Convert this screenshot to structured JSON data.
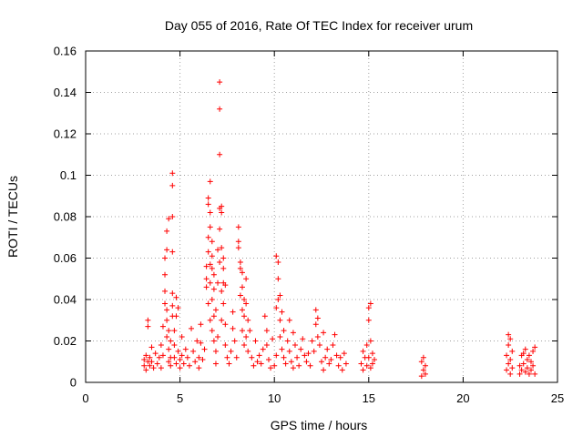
{
  "chart_data": {
    "type": "scatter",
    "title": "Day 055 of 2016, Rate Of TEC Index for receiver urum",
    "xlabel": "GPS time / hours",
    "ylabel": "ROTI / TECUs",
    "xlim": [
      0,
      25
    ],
    "ylim": [
      0,
      0.16
    ],
    "xticks": [
      "0",
      "5",
      "10",
      "15",
      "20",
      "25"
    ],
    "yticks": [
      "0",
      "0.02",
      "0.04",
      "0.06",
      "0.08",
      "0.1",
      "0.12",
      "0.14",
      "0.16"
    ],
    "grid": true,
    "marker": "+",
    "series": [
      {
        "color": "#ff0000",
        "points": [
          [
            3.1,
            0.008
          ],
          [
            3.1,
            0.011
          ],
          [
            3.2,
            0.006
          ],
          [
            3.2,
            0.013
          ],
          [
            3.3,
            0.01
          ],
          [
            3.3,
            0.03
          ],
          [
            3.3,
            0.027
          ],
          [
            3.4,
            0.012
          ],
          [
            3.4,
            0.008
          ],
          [
            3.5,
            0.017
          ],
          [
            3.5,
            0.01
          ],
          [
            3.6,
            0.007
          ],
          [
            3.7,
            0.014
          ],
          [
            3.8,
            0.009
          ],
          [
            3.9,
            0.012
          ],
          [
            4.0,
            0.018
          ],
          [
            4.0,
            0.007
          ],
          [
            4.1,
            0.013
          ],
          [
            4.1,
            0.027
          ],
          [
            4.2,
            0.06
          ],
          [
            4.2,
            0.052
          ],
          [
            4.2,
            0.044
          ],
          [
            4.2,
            0.038
          ],
          [
            4.3,
            0.064
          ],
          [
            4.3,
            0.073
          ],
          [
            4.3,
            0.035
          ],
          [
            4.3,
            0.03
          ],
          [
            4.3,
            0.022
          ],
          [
            4.4,
            0.079
          ],
          [
            4.4,
            0.025
          ],
          [
            4.4,
            0.016
          ],
          [
            4.4,
            0.01
          ],
          [
            4.5,
            0.012
          ],
          [
            4.5,
            0.008
          ],
          [
            4.5,
            0.02
          ],
          [
            4.6,
            0.101
          ],
          [
            4.6,
            0.095
          ],
          [
            4.6,
            0.08
          ],
          [
            4.6,
            0.063
          ],
          [
            4.6,
            0.043
          ],
          [
            4.6,
            0.037
          ],
          [
            4.6,
            0.032
          ],
          [
            4.7,
            0.025
          ],
          [
            4.7,
            0.018
          ],
          [
            4.7,
            0.012
          ],
          [
            4.8,
            0.009
          ],
          [
            4.8,
            0.032
          ],
          [
            4.8,
            0.041
          ],
          [
            4.9,
            0.036
          ],
          [
            4.9,
            0.015
          ],
          [
            5.0,
            0.011
          ],
          [
            5.0,
            0.007
          ],
          [
            5.1,
            0.022
          ],
          [
            5.1,
            0.013
          ],
          [
            5.2,
            0.009
          ],
          [
            5.3,
            0.016
          ],
          [
            5.4,
            0.012
          ],
          [
            5.5,
            0.008
          ],
          [
            5.6,
            0.026
          ],
          [
            5.7,
            0.015
          ],
          [
            5.8,
            0.01
          ],
          [
            5.9,
            0.02
          ],
          [
            6.0,
            0.012
          ],
          [
            6.0,
            0.007
          ],
          [
            6.1,
            0.019
          ],
          [
            6.1,
            0.028
          ],
          [
            6.2,
            0.011
          ],
          [
            6.3,
            0.016
          ],
          [
            6.4,
            0.05
          ],
          [
            6.4,
            0.046
          ],
          [
            6.4,
            0.056
          ],
          [
            6.5,
            0.089
          ],
          [
            6.5,
            0.086
          ],
          [
            6.5,
            0.07
          ],
          [
            6.5,
            0.063
          ],
          [
            6.5,
            0.038
          ],
          [
            6.6,
            0.097
          ],
          [
            6.6,
            0.082
          ],
          [
            6.6,
            0.075
          ],
          [
            6.6,
            0.057
          ],
          [
            6.6,
            0.048
          ],
          [
            6.6,
            0.03
          ],
          [
            6.7,
            0.068
          ],
          [
            6.7,
            0.061
          ],
          [
            6.7,
            0.055
          ],
          [
            6.7,
            0.04
          ],
          [
            6.7,
            0.025
          ],
          [
            6.8,
            0.052
          ],
          [
            6.8,
            0.045
          ],
          [
            6.8,
            0.032
          ],
          [
            6.8,
            0.02
          ],
          [
            6.9,
            0.035
          ],
          [
            6.9,
            0.015
          ],
          [
            6.9,
            0.009
          ],
          [
            7.0,
            0.064
          ],
          [
            7.0,
            0.048
          ],
          [
            7.0,
            0.022
          ],
          [
            7.1,
            0.145
          ],
          [
            7.1,
            0.132
          ],
          [
            7.1,
            0.11
          ],
          [
            7.1,
            0.084
          ],
          [
            7.1,
            0.074
          ],
          [
            7.1,
            0.058
          ],
          [
            7.2,
            0.085
          ],
          [
            7.2,
            0.082
          ],
          [
            7.2,
            0.065
          ],
          [
            7.2,
            0.044
          ],
          [
            7.2,
            0.03
          ],
          [
            7.3,
            0.06
          ],
          [
            7.3,
            0.055
          ],
          [
            7.3,
            0.048
          ],
          [
            7.3,
            0.038
          ],
          [
            7.4,
            0.047
          ],
          [
            7.4,
            0.028
          ],
          [
            7.4,
            0.018
          ],
          [
            7.5,
            0.012
          ],
          [
            7.6,
            0.009
          ],
          [
            7.7,
            0.015
          ],
          [
            7.8,
            0.034
          ],
          [
            7.8,
            0.026
          ],
          [
            7.9,
            0.02
          ],
          [
            8.0,
            0.012
          ],
          [
            8.1,
            0.075
          ],
          [
            8.1,
            0.068
          ],
          [
            8.1,
            0.065
          ],
          [
            8.2,
            0.058
          ],
          [
            8.2,
            0.055
          ],
          [
            8.2,
            0.042
          ],
          [
            8.3,
            0.053
          ],
          [
            8.3,
            0.046
          ],
          [
            8.3,
            0.035
          ],
          [
            8.3,
            0.025
          ],
          [
            8.4,
            0.04
          ],
          [
            8.4,
            0.032
          ],
          [
            8.4,
            0.018
          ],
          [
            8.5,
            0.05
          ],
          [
            8.5,
            0.038
          ],
          [
            8.5,
            0.022
          ],
          [
            8.6,
            0.03
          ],
          [
            8.6,
            0.015
          ],
          [
            8.7,
            0.025
          ],
          [
            8.8,
            0.012
          ],
          [
            8.9,
            0.008
          ],
          [
            9.0,
            0.02
          ],
          [
            9.1,
            0.01
          ],
          [
            9.2,
            0.013
          ],
          [
            9.3,
            0.009
          ],
          [
            9.4,
            0.016
          ],
          [
            9.5,
            0.032
          ],
          [
            9.6,
            0.025
          ],
          [
            9.6,
            0.018
          ],
          [
            9.7,
            0.011
          ],
          [
            9.8,
            0.007
          ],
          [
            9.9,
            0.021
          ],
          [
            10.0,
            0.008
          ],
          [
            10.1,
            0.013
          ],
          [
            10.1,
            0.036
          ],
          [
            10.1,
            0.061
          ],
          [
            10.2,
            0.058
          ],
          [
            10.2,
            0.05
          ],
          [
            10.2,
            0.04
          ],
          [
            10.3,
            0.042
          ],
          [
            10.3,
            0.03
          ],
          [
            10.3,
            0.022
          ],
          [
            10.4,
            0.034
          ],
          [
            10.4,
            0.016
          ],
          [
            10.5,
            0.025
          ],
          [
            10.5,
            0.012
          ],
          [
            10.6,
            0.009
          ],
          [
            10.7,
            0.02
          ],
          [
            10.8,
            0.03
          ],
          [
            10.8,
            0.015
          ],
          [
            10.9,
            0.01
          ],
          [
            11.0,
            0.024
          ],
          [
            11.0,
            0.007
          ],
          [
            11.1,
            0.018
          ],
          [
            11.2,
            0.012
          ],
          [
            11.3,
            0.008
          ],
          [
            11.4,
            0.016
          ],
          [
            11.5,
            0.021
          ],
          [
            11.6,
            0.013
          ],
          [
            11.7,
            0.01
          ],
          [
            11.8,
            0.014
          ],
          [
            11.9,
            0.008
          ],
          [
            12.0,
            0.02
          ],
          [
            12.1,
            0.015
          ],
          [
            12.2,
            0.035
          ],
          [
            12.2,
            0.028
          ],
          [
            12.3,
            0.031
          ],
          [
            12.3,
            0.022
          ],
          [
            12.4,
            0.018
          ],
          [
            12.5,
            0.01
          ],
          [
            12.6,
            0.024
          ],
          [
            12.6,
            0.006
          ],
          [
            12.7,
            0.012
          ],
          [
            12.8,
            0.016
          ],
          [
            12.9,
            0.009
          ],
          [
            13.0,
            0.011
          ],
          [
            13.1,
            0.018
          ],
          [
            13.2,
            0.023
          ],
          [
            13.3,
            0.013
          ],
          [
            13.4,
            0.008
          ],
          [
            13.5,
            0.012
          ],
          [
            13.6,
            0.006
          ],
          [
            13.7,
            0.014
          ],
          [
            13.8,
            0.009
          ],
          [
            14.6,
            0.009
          ],
          [
            14.7,
            0.015
          ],
          [
            14.7,
            0.006
          ],
          [
            14.8,
            0.012
          ],
          [
            14.9,
            0.018
          ],
          [
            14.9,
            0.008
          ],
          [
            15.0,
            0.03
          ],
          [
            15.0,
            0.036
          ],
          [
            15.0,
            0.012
          ],
          [
            15.1,
            0.038
          ],
          [
            15.1,
            0.02
          ],
          [
            15.1,
            0.007
          ],
          [
            15.2,
            0.014
          ],
          [
            15.2,
            0.009
          ],
          [
            15.3,
            0.011
          ],
          [
            17.8,
            0.01
          ],
          [
            17.8,
            0.003
          ],
          [
            17.9,
            0.012
          ],
          [
            17.9,
            0.006
          ],
          [
            18.0,
            0.008
          ],
          [
            18.0,
            0.004
          ],
          [
            22.3,
            0.013
          ],
          [
            22.3,
            0.006
          ],
          [
            22.4,
            0.023
          ],
          [
            22.4,
            0.018
          ],
          [
            22.4,
            0.009
          ],
          [
            22.5,
            0.021
          ],
          [
            22.5,
            0.011
          ],
          [
            22.5,
            0.004
          ],
          [
            22.6,
            0.015
          ],
          [
            22.6,
            0.007
          ],
          [
            23.0,
            0.008
          ],
          [
            23.0,
            0.004
          ],
          [
            23.1,
            0.013
          ],
          [
            23.1,
            0.006
          ],
          [
            23.2,
            0.014
          ],
          [
            23.2,
            0.009
          ],
          [
            23.3,
            0.016
          ],
          [
            23.3,
            0.005
          ],
          [
            23.4,
            0.011
          ],
          [
            23.4,
            0.007
          ],
          [
            23.5,
            0.013
          ],
          [
            23.5,
            0.004
          ],
          [
            23.6,
            0.01
          ],
          [
            23.6,
            0.006
          ],
          [
            23.7,
            0.015
          ],
          [
            23.7,
            0.008
          ],
          [
            23.8,
            0.017
          ],
          [
            23.8,
            0.004
          ]
        ]
      }
    ]
  }
}
